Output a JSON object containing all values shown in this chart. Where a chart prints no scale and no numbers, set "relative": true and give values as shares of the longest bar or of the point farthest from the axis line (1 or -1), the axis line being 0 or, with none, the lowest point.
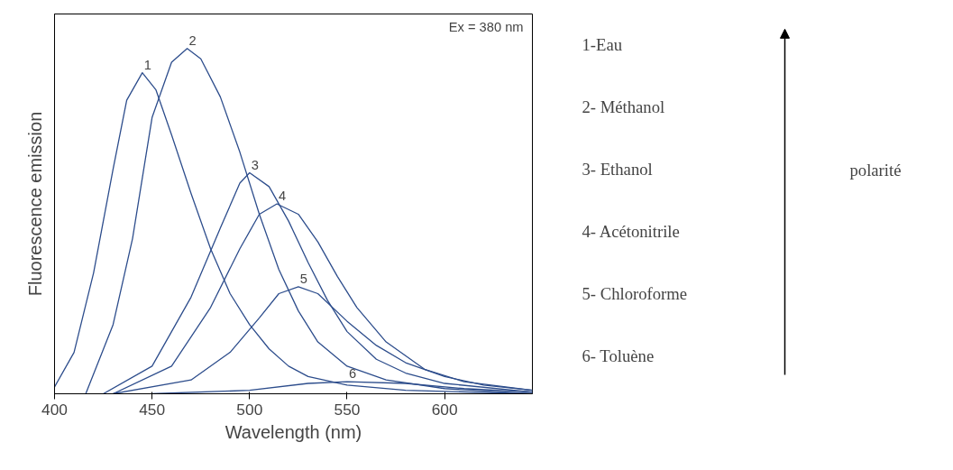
{
  "chart_data": {
    "type": "line",
    "xlabel": "Wavelength (nm)",
    "ylabel": "Fluorescence emission",
    "relative": true,
    "xlim": [
      400,
      645
    ],
    "xticks": [
      400,
      450,
      500,
      550,
      600
    ],
    "tick_labels": "x",
    "grid": false,
    "marker": "none",
    "line_style": "solid",
    "annotations": [
      "Ex = 380 nm",
      "1-Eau",
      "2- Méthanol",
      "3- Ethanol",
      "4- Acétonitrile",
      "5- Chloroforme",
      "6- Toluène",
      "polarité"
    ],
    "series": [
      {
        "name": "1",
        "color": "#2d4d8c",
        "x": [
          400,
          410,
          420,
          430,
          437,
          445,
          452,
          460,
          470,
          480,
          490,
          500,
          510,
          520,
          530,
          550,
          580,
          645
        ],
        "values": [
          0.02,
          0.12,
          0.35,
          0.65,
          0.85,
          0.93,
          0.88,
          0.75,
          0.58,
          0.42,
          0.29,
          0.2,
          0.13,
          0.08,
          0.05,
          0.025,
          0.01,
          0.0
        ]
      },
      {
        "name": "2",
        "color": "#2d4d8c",
        "x": [
          416,
          430,
          440,
          450,
          460,
          468,
          475,
          485,
          495,
          505,
          515,
          525,
          535,
          550,
          570,
          600,
          645
        ],
        "values": [
          0.0,
          0.2,
          0.45,
          0.8,
          0.96,
          1.0,
          0.97,
          0.86,
          0.7,
          0.52,
          0.36,
          0.24,
          0.15,
          0.08,
          0.04,
          0.015,
          0.0
        ]
      },
      {
        "name": "3",
        "color": "#2d4d8c",
        "x": [
          425,
          450,
          470,
          485,
          495,
          500,
          510,
          520,
          530,
          540,
          550,
          565,
          580,
          600,
          645
        ],
        "values": [
          0.0,
          0.08,
          0.28,
          0.48,
          0.61,
          0.64,
          0.6,
          0.5,
          0.38,
          0.27,
          0.18,
          0.1,
          0.06,
          0.03,
          0.005
        ]
      },
      {
        "name": "4",
        "color": "#2d4d8c",
        "x": [
          430,
          460,
          480,
          495,
          505,
          514,
          525,
          535,
          545,
          555,
          570,
          590,
          610,
          645
        ],
        "values": [
          0.0,
          0.08,
          0.25,
          0.42,
          0.52,
          0.55,
          0.52,
          0.44,
          0.34,
          0.25,
          0.15,
          0.07,
          0.035,
          0.01
        ]
      },
      {
        "name": "5",
        "color": "#2d4d8c",
        "x": [
          430,
          470,
          490,
          505,
          515,
          525,
          535,
          550,
          565,
          580,
          600,
          620,
          645
        ],
        "values": [
          0.0,
          0.04,
          0.12,
          0.22,
          0.29,
          0.31,
          0.29,
          0.21,
          0.14,
          0.09,
          0.05,
          0.025,
          0.01
        ]
      },
      {
        "name": "6",
        "color": "#2d4d8c",
        "x": [
          450,
          500,
          530,
          550,
          580,
          610,
          645
        ],
        "values": [
          0.0,
          0.01,
          0.03,
          0.035,
          0.03,
          0.015,
          0.005
        ]
      }
    ]
  }
}
